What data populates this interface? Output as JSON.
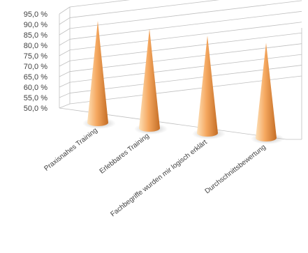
{
  "chart_data": {
    "type": "bar",
    "style": "3d-cone",
    "title": "",
    "xlabel": "",
    "ylabel": "",
    "ylim": [
      50,
      95
    ],
    "grid": true,
    "legend": "none",
    "y_ticks": [
      "95,0 %",
      "90,0 %",
      "85,0 %",
      "80,0 %",
      "75,0 %",
      "70,0 %",
      "65,0 %",
      "60,0 %",
      "55,0 %",
      "50,0 %"
    ],
    "y_tick_values": [
      95,
      90,
      85,
      80,
      75,
      70,
      65,
      60,
      55,
      50
    ],
    "categories": [
      "Praxisnahes Training",
      "Erlebbares Training",
      "Fachbegriffe wurden mir logisch erklärt",
      "Durchschnittsbewertung"
    ],
    "values": [
      90.5,
      89.5,
      88.5,
      87.5
    ],
    "colors": {
      "cone_light": "#fde0b8",
      "cone_mid": "#f5a860",
      "cone_dark": "#c46d25",
      "grid": "#bfbfbf",
      "axis_text": "#404040"
    }
  }
}
